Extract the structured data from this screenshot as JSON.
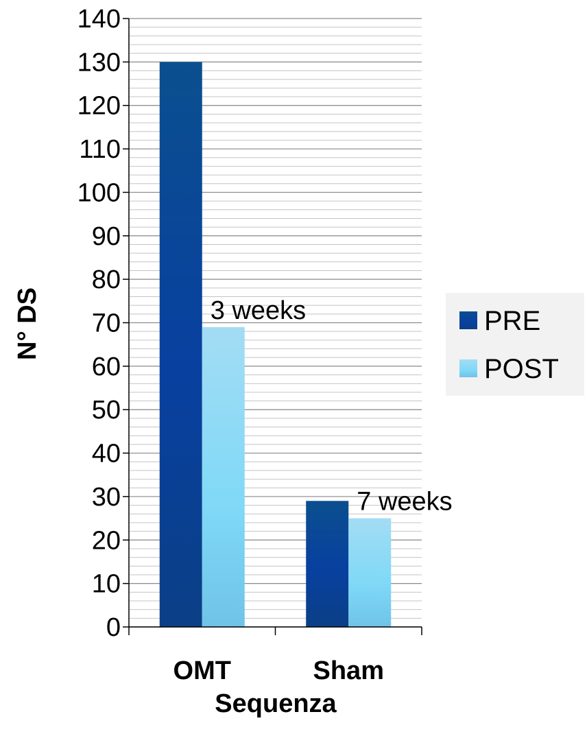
{
  "chart_data": {
    "type": "bar",
    "categories": [
      "OMT",
      "Sham"
    ],
    "series": [
      {
        "name": "PRE",
        "values": [
          130,
          29
        ]
      },
      {
        "name": "POST",
        "values": [
          69,
          25
        ]
      }
    ],
    "xlabel": "Sequenza",
    "ylabel": "N° DS",
    "ylim": [
      0,
      140
    ],
    "yticks": [
      0,
      10,
      20,
      30,
      40,
      50,
      60,
      70,
      80,
      90,
      100,
      110,
      120,
      130,
      140
    ],
    "ytick_labels": [
      "0",
      "10",
      "20",
      "30",
      "40",
      "50",
      "60",
      "70",
      "80",
      "90",
      "100",
      "110",
      "120",
      "130",
      "140"
    ],
    "grid": true,
    "legend": "right",
    "annotations": [
      {
        "text": "3 weeks",
        "category": "OMT"
      },
      {
        "text": "7 weeks",
        "category": "Sham"
      }
    ],
    "colors": {
      "PRE": "#0a4f94",
      "POST": "#8fd8f4",
      "grid": "#b8b8b8",
      "legend_bg": "#f2f2f2"
    }
  }
}
